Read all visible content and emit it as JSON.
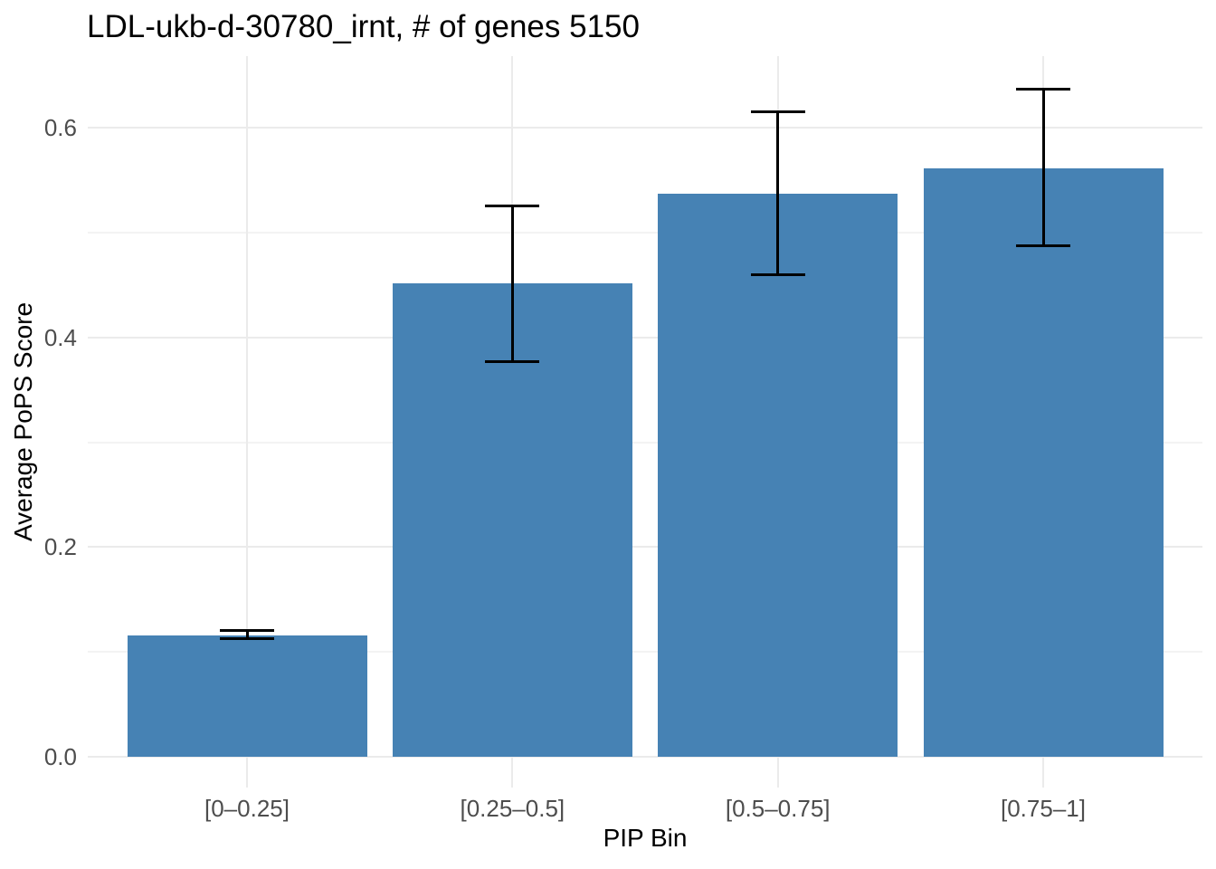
{
  "chart_data": {
    "type": "bar",
    "title": "LDL-ukb-d-30780_irnt, # of genes 5150",
    "xlabel": "PIP Bin",
    "ylabel": "Average PoPS Score",
    "categories": [
      "[0–0.25]",
      "[0.25–0.5]",
      "[0.5–0.75]",
      "[0.75–1]"
    ],
    "values": [
      0.116,
      0.452,
      0.537,
      0.561
    ],
    "error_low": [
      0.113,
      0.377,
      0.46,
      0.488
    ],
    "error_high": [
      0.121,
      0.526,
      0.616,
      0.637
    ],
    "ytick_labels": [
      "0.0",
      "0.2",
      "0.4",
      "0.6"
    ],
    "ytick_values": [
      0.0,
      0.2,
      0.4,
      0.6
    ],
    "minor_gridlines": [
      0.1,
      0.3,
      0.5
    ],
    "ylim": [
      -0.029,
      0.668
    ],
    "grid": true,
    "legend": "none",
    "colors": {
      "bar": "#4682B4",
      "errorbar": "#000000",
      "major_gridline": "#EBEBEB",
      "minor_gridline": "#F3F3F3",
      "tick_label": "#4D4D4D",
      "text": "#000000",
      "background": "#FFFFFF"
    }
  }
}
